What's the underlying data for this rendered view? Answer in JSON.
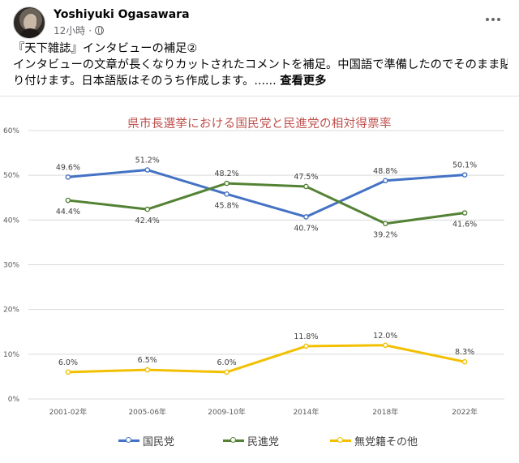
{
  "post": {
    "author": "Yoshiyuki Ogasawara",
    "time": "12小時",
    "dot": "·",
    "text_line1": "『天下雑誌』インタビューの補足②",
    "text_line2": "インタビューの文章が長くなりカットされたコメントを補足。中国語で準備したのでそのまま貼",
    "text_line3": "り付けます。日本語版はそのうち作成します。......",
    "see_more": "查看更多"
  },
  "colors": {
    "kmt": "#4472c4",
    "dpp": "#548235",
    "indep": "#f2c000",
    "title": "#c0504d",
    "grid": "#d9d9d9"
  },
  "chart_data": {
    "type": "line",
    "title": "県市長選挙における国民党と民進党の相対得票率",
    "categories": [
      "2001-02年",
      "2005-06年",
      "2009-10年",
      "2014年",
      "2018年",
      "2022年"
    ],
    "ylim": [
      0,
      60
    ],
    "yticks": [
      "0%",
      "10%",
      "20%",
      "30%",
      "40%",
      "50%",
      "60%"
    ],
    "grid": true,
    "legend_position": "bottom",
    "series": [
      {
        "name": "国民党",
        "color_key": "kmt",
        "values": [
          49.6,
          51.2,
          45.8,
          40.7,
          48.8,
          50.1
        ],
        "labels": [
          "49.6%",
          "51.2%",
          "45.8%",
          "40.7%",
          "48.8%",
          "50.1%"
        ]
      },
      {
        "name": "民進党",
        "color_key": "dpp",
        "values": [
          44.4,
          42.4,
          48.2,
          47.5,
          39.2,
          41.6
        ],
        "labels": [
          "44.4%",
          "42.4%",
          "48.2%",
          "47.5%",
          "39.2%",
          "41.6%"
        ]
      },
      {
        "name": "無党籍その他",
        "color_key": "indep",
        "values": [
          6.0,
          6.5,
          6.0,
          11.8,
          12.0,
          8.3
        ],
        "labels": [
          "6.0%",
          "6.5%",
          "6.0%",
          "11.8%",
          "12.0%",
          "8.3%"
        ]
      }
    ]
  }
}
